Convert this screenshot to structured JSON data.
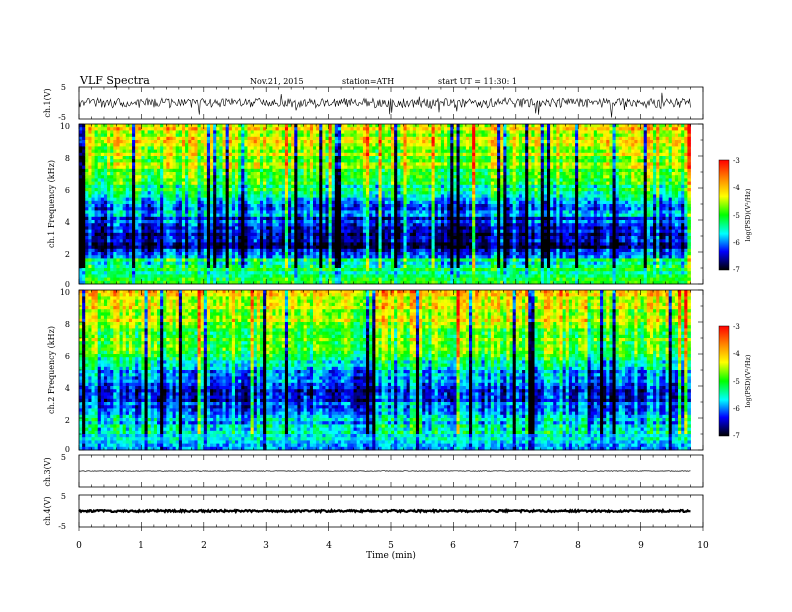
{
  "header": {
    "title": "VLF Spectra",
    "date": "Nov.21, 2015",
    "station": "station=ATH",
    "start": "start UT =  11:30: 1"
  },
  "colorbar": {
    "label": "log(PSD)(V²/Hz)",
    "ticks": [
      "-3",
      "-4",
      "-5",
      "-6",
      "-7"
    ],
    "stops": [
      "#ff0000",
      "#ff8800",
      "#ffff00",
      "#00ff00",
      "#00ffff",
      "#0000ff",
      "#000000"
    ]
  },
  "chart_data": [
    {
      "type": "line",
      "name": "ch.1 waveform",
      "ylabel": "ch.1(V)",
      "ylim": [
        -5,
        5
      ],
      "yticks": [
        "5",
        "-5"
      ],
      "xlim": [
        0,
        10
      ],
      "baseline": 0,
      "noise": 1.5
    },
    {
      "type": "heatmap",
      "ylabel": "ch.1  Frequency (kHz)",
      "ylim": [
        0,
        10
      ],
      "yticks": [
        "10",
        "8",
        "6",
        "4",
        "2",
        "0"
      ],
      "xlim": [
        0,
        9.8
      ],
      "zrange": [
        -7,
        -3
      ],
      "psd_profile": {
        "freq_khz": [
          0,
          0.5,
          1,
          1.5,
          2,
          2.5,
          3,
          3.5,
          4,
          4.5,
          5,
          6,
          7,
          8,
          9,
          10
        ],
        "log_psd": [
          -4.8,
          -5.2,
          -5.3,
          -5.4,
          -6.5,
          -6.7,
          -6.6,
          -6.4,
          -6.2,
          -6.0,
          -5.8,
          -5.3,
          -4.9,
          -4.6,
          -4.4,
          -4.3
        ]
      }
    },
    {
      "type": "heatmap",
      "ylabel": "ch.2  Frequency (kHz)",
      "ylim": [
        0,
        10
      ],
      "yticks": [
        "10",
        "8",
        "6",
        "4",
        "2",
        "0"
      ],
      "xlim": [
        0,
        9.8
      ],
      "zrange": [
        -7,
        -3
      ],
      "psd_profile": {
        "freq_khz": [
          0,
          0.5,
          1,
          1.5,
          2,
          2.5,
          3,
          3.5,
          4,
          4.5,
          5,
          6,
          7,
          8,
          9,
          10
        ],
        "log_psd": [
          -6.0,
          -5.5,
          -5.4,
          -5.5,
          -5.9,
          -6.0,
          -6.3,
          -6.6,
          -6.1,
          -6.2,
          -5.7,
          -5.2,
          -4.9,
          -4.6,
          -4.4,
          -4.3
        ]
      }
    },
    {
      "type": "line",
      "name": "ch.3 waveform",
      "ylabel": "ch.3(V)",
      "ylim": [
        -5,
        5
      ],
      "yticks": [
        "5"
      ],
      "xlim": [
        0,
        10
      ],
      "baseline": 0,
      "noise": 0.1
    },
    {
      "type": "line",
      "name": "ch.4 waveform",
      "ylabel": "ch.4(V)",
      "ylim": [
        -5,
        5
      ],
      "yticks": [
        "5",
        "-5"
      ],
      "xlim": [
        0,
        10
      ],
      "baseline": 0,
      "noise": 0.3
    }
  ],
  "xaxis": {
    "label": "Time  (min)",
    "ticks": [
      "0",
      "1",
      "2",
      "3",
      "4",
      "5",
      "6",
      "7",
      "8",
      "9",
      "10"
    ]
  }
}
